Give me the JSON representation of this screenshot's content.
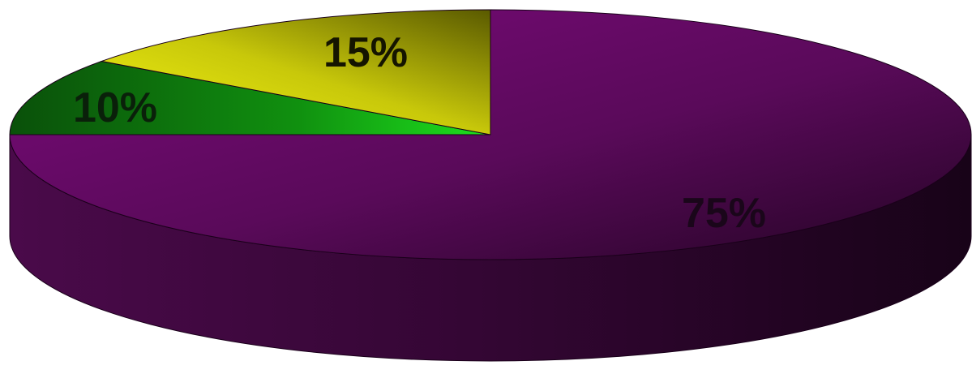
{
  "chart_data": {
    "type": "pie",
    "style": "3d",
    "slices": [
      {
        "value": 75,
        "label": "75%",
        "color": "#6e0a6e",
        "label_color": "#1a061a"
      },
      {
        "value": 10,
        "label": "10%",
        "color": "#14b414",
        "label_color": "#0a200a"
      },
      {
        "value": 15,
        "label": "15%",
        "color": "#e6e614",
        "label_color": "#151500"
      }
    ],
    "legend": "none",
    "grid": false
  }
}
